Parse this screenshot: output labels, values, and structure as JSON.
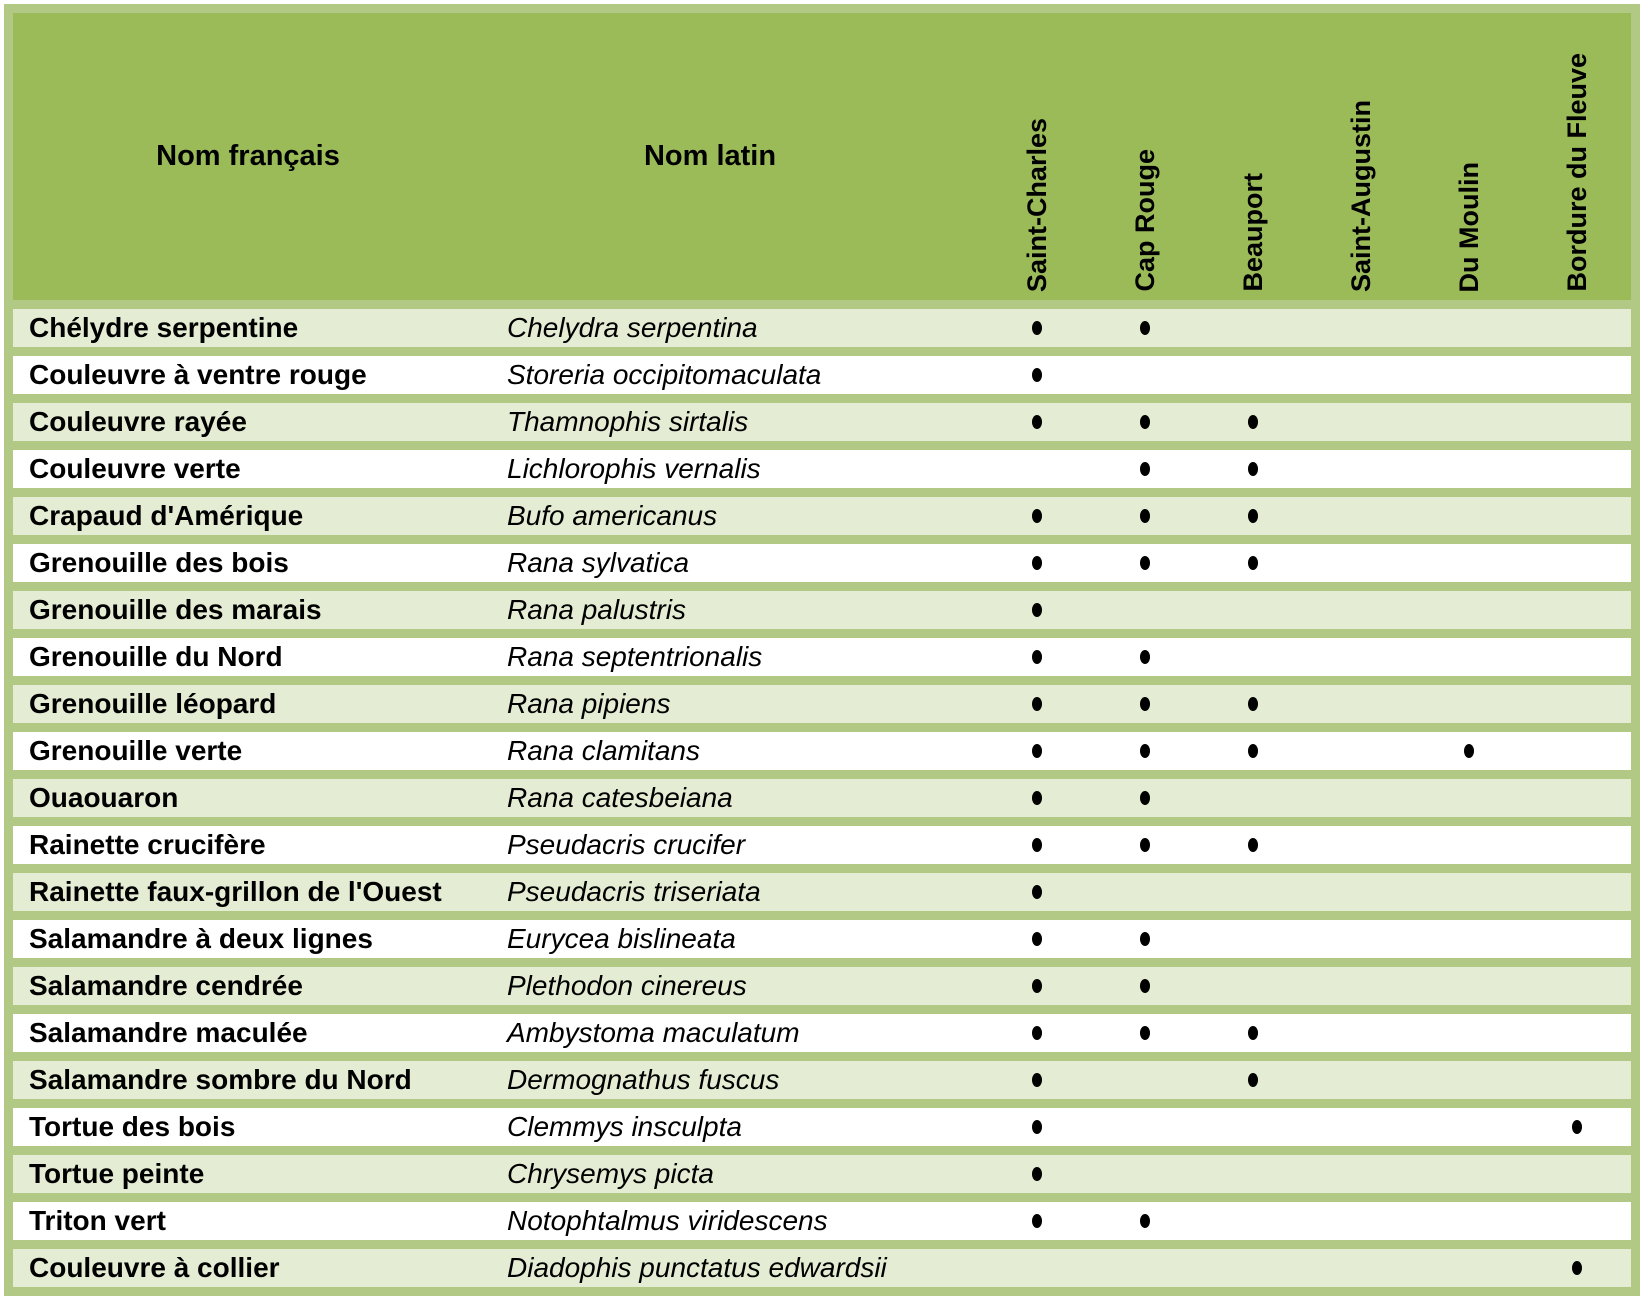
{
  "table": {
    "header": {
      "french_label": "Nom français",
      "latin_label": "Nom latin",
      "locations": [
        "Saint-Charles",
        "Cap Rouge",
        "Beauport",
        "Saint-Augustin",
        "Du Moulin",
        "Bordure du Fleuve"
      ]
    },
    "rows": [
      {
        "french": "Chélydre serpentine",
        "latin": "Chelydra serpentina",
        "presence": [
          1,
          1,
          0,
          0,
          0,
          0
        ]
      },
      {
        "french": "Couleuvre à ventre rouge",
        "latin": "Storeria occipitomaculata",
        "presence": [
          1,
          0,
          0,
          0,
          0,
          0
        ]
      },
      {
        "french": "Couleuvre rayée",
        "latin": "Thamnophis sirtalis",
        "presence": [
          1,
          1,
          1,
          0,
          0,
          0
        ]
      },
      {
        "french": "Couleuvre verte",
        "latin": "Lichlorophis vernalis",
        "presence": [
          0,
          1,
          1,
          0,
          0,
          0
        ]
      },
      {
        "french": "Crapaud d'Amérique",
        "latin": "Bufo americanus",
        "presence": [
          1,
          1,
          1,
          0,
          0,
          0
        ]
      },
      {
        "french": "Grenouille des bois",
        "latin": "Rana sylvatica",
        "presence": [
          1,
          1,
          1,
          0,
          0,
          0
        ]
      },
      {
        "french": "Grenouille des marais",
        "latin": "Rana palustris",
        "presence": [
          1,
          0,
          0,
          0,
          0,
          0
        ]
      },
      {
        "french": "Grenouille du Nord",
        "latin": "Rana septentrionalis",
        "presence": [
          1,
          1,
          0,
          0,
          0,
          0
        ]
      },
      {
        "french": "Grenouille léopard",
        "latin": "Rana pipiens",
        "presence": [
          1,
          1,
          1,
          0,
          0,
          0
        ]
      },
      {
        "french": "Grenouille verte",
        "latin": "Rana clamitans",
        "presence": [
          1,
          1,
          1,
          0,
          1,
          0
        ]
      },
      {
        "french": "Ouaouaron",
        "latin": "Rana catesbeiana",
        "presence": [
          1,
          1,
          0,
          0,
          0,
          0
        ]
      },
      {
        "french": "Rainette crucifère",
        "latin": "Pseudacris crucifer",
        "presence": [
          1,
          1,
          1,
          0,
          0,
          0
        ]
      },
      {
        "french": "Rainette faux-grillon de l'Ouest",
        "latin": "Pseudacris triseriata",
        "presence": [
          1,
          0,
          0,
          0,
          0,
          0
        ]
      },
      {
        "french": "Salamandre à deux lignes",
        "latin": "Eurycea bislineata",
        "presence": [
          1,
          1,
          0,
          0,
          0,
          0
        ]
      },
      {
        "french": "Salamandre cendrée",
        "latin": "Plethodon cinereus",
        "presence": [
          1,
          1,
          0,
          0,
          0,
          0
        ]
      },
      {
        "french": "Salamandre maculée",
        "latin": "Ambystoma maculatum",
        "presence": [
          1,
          1,
          1,
          0,
          0,
          0
        ]
      },
      {
        "french": "Salamandre sombre du Nord",
        "latin": "Dermognathus fuscus",
        "presence": [
          1,
          0,
          1,
          0,
          0,
          0
        ]
      },
      {
        "french": "Tortue des bois",
        "latin": "Clemmys insculpta",
        "presence": [
          1,
          0,
          0,
          0,
          0,
          1
        ]
      },
      {
        "french": "Tortue peinte",
        "latin": "Chrysemys picta",
        "presence": [
          1,
          0,
          0,
          0,
          0,
          0
        ]
      },
      {
        "french": "Triton vert",
        "latin": "Notophtalmus viridescens",
        "presence": [
          1,
          1,
          0,
          0,
          0,
          0
        ]
      },
      {
        "french": "Couleuvre à collier",
        "latin": "Diadophis punctatus edwardsii",
        "presence": [
          0,
          0,
          0,
          0,
          0,
          1
        ]
      }
    ],
    "dot_symbol": "•",
    "colors": {
      "header_green": "#9BBB59",
      "border_green": "#B2C985",
      "row_alt_green": "#E4EDD3",
      "row_white": "#FFFFFF",
      "text": "#000000",
      "dot": "#000000"
    }
  }
}
